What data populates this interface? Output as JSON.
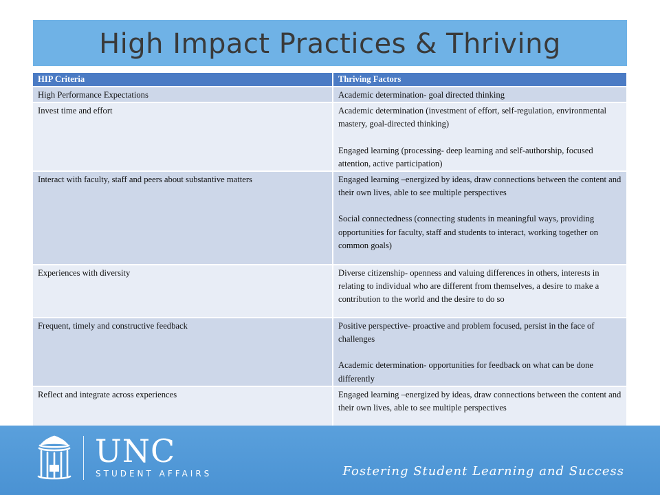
{
  "slide": {
    "title": "High Impact Practices & Thriving"
  },
  "table": {
    "headers": [
      "HIP Criteria",
      "Thriving Factors"
    ],
    "rows": [
      {
        "criteria": "High Performance Expectations",
        "factors": [
          "Academic determination- goal directed thinking"
        ]
      },
      {
        "criteria": "Invest time and effort",
        "factors": [
          "Academic determination (investment of effort, self-regulation, environmental mastery, goal-directed thinking)",
          "Engaged learning (processing- deep learning and self-authorship, focused attention, active participation)"
        ]
      },
      {
        "criteria": "Interact with faculty, staff and peers about substantive matters",
        "factors": [
          "Engaged learning –energized by ideas, draw connections between the content and their own lives, able to see multiple perspectives",
          "Social connectedness (connecting students in meaningful ways, providing opportunities for faculty, staff and students to interact, working together on common goals)"
        ]
      },
      {
        "criteria": "Experiences with diversity",
        "factors": [
          "Diverse citizenship- openness and valuing differences in others, interests in relating to individual who are different from themselves, a desire to make a contribution to the world and the desire to do so"
        ]
      },
      {
        "criteria": "Frequent, timely and constructive feedback",
        "factors": [
          "Positive perspective- proactive and problem focused, persist in the face of challenges",
          "Academic determination- opportunities for feedback on what can be done differently"
        ]
      },
      {
        "criteria": "Reflect and integrate across experiences",
        "factors": [
          "Engaged learning –energized by ideas, draw connections between the content and their own lives, able to see multiple perspectives"
        ]
      }
    ]
  },
  "footer": {
    "logo_main": "UNC",
    "logo_sub": "STUDENT AFFAIRS",
    "tagline": "Fostering Student Learning and Success",
    "logo_icon": "old-well-icon"
  },
  "colors": {
    "title_bar": "#6fb2e6",
    "header_row": "#4b7bc4",
    "row_dark": "#cdd7e9",
    "row_light": "#e8edf6",
    "footer": "#4a92d3"
  }
}
